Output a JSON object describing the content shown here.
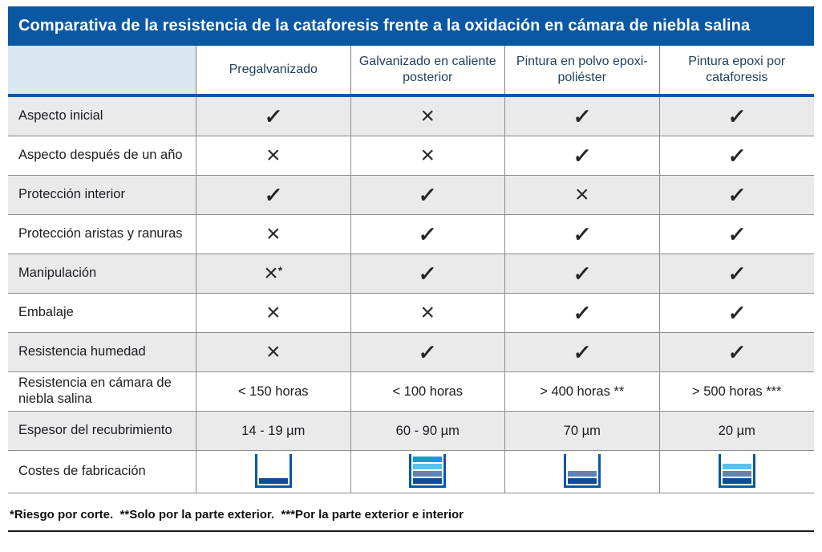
{
  "chart_data": {
    "type": "table",
    "title": "Comparativa de la resistencia de la cataforesis frente a la oxidación en cámara de niebla salina",
    "columns": [
      "Pregalvanizado",
      "Galvanizado en caliente posterior",
      "Pintura en polvo epoxi-poliéster",
      "Pintura epoxi por cataforesis"
    ],
    "rows": [
      {
        "label": "Aspecto inicial",
        "type": "marks",
        "values": [
          "check",
          "cross",
          "check",
          "check"
        ]
      },
      {
        "label": "Aspecto después de un año",
        "type": "marks",
        "values": [
          "cross",
          "cross",
          "check",
          "check"
        ]
      },
      {
        "label": "Protección interior",
        "type": "marks",
        "values": [
          "check",
          "check",
          "cross",
          "check"
        ]
      },
      {
        "label": "Protección aristas y ranuras",
        "type": "marks",
        "values": [
          "cross",
          "check",
          "check",
          "check"
        ]
      },
      {
        "label": "Manipulación",
        "type": "marks",
        "values": [
          "cross*",
          "check",
          "check",
          "check"
        ]
      },
      {
        "label": "Embalaje",
        "type": "marks",
        "values": [
          "cross",
          "cross",
          "check",
          "check"
        ]
      },
      {
        "label": "Resistencia humedad",
        "type": "marks",
        "values": [
          "cross",
          "check",
          "check",
          "check"
        ]
      },
      {
        "label": "Resistencia en cámara de niebla salina",
        "type": "text",
        "values": [
          "< 150 horas",
          "< 100 horas",
          "> 400 horas **",
          "> 500 horas ***"
        ]
      },
      {
        "label": "Espesor del recubrimiento",
        "type": "text",
        "values": [
          "14 - 19 µm",
          "60 - 90 µm",
          "70 µm",
          "20 µm"
        ]
      },
      {
        "label": "Costes de fabricación",
        "type": "cost",
        "values": [
          1,
          4,
          2,
          3
        ]
      }
    ],
    "footnote": "*Riesgo por corte.  **Solo por la parte exterior.  ***Por la parte exterior e interior"
  },
  "marks": {
    "check_glyph": "✓",
    "cross_glyph": "×",
    "asterisk": "*"
  },
  "cost": {
    "palette_top_to_bottom": [
      "#0d9ddb",
      "#56c2ef",
      "#5b84ba",
      "#0d4c9b"
    ],
    "outline_color": "#0a58a4"
  },
  "colors": {
    "title_bar": "#0a58a4",
    "header_corner_bg": "#d9e8f1",
    "header_text": "#24405e",
    "row_alt_bg": "#eaeaea",
    "grid_line": "#8c8c8c",
    "blue_divider": "#0a58a4",
    "body_text": "#1c1c24"
  }
}
